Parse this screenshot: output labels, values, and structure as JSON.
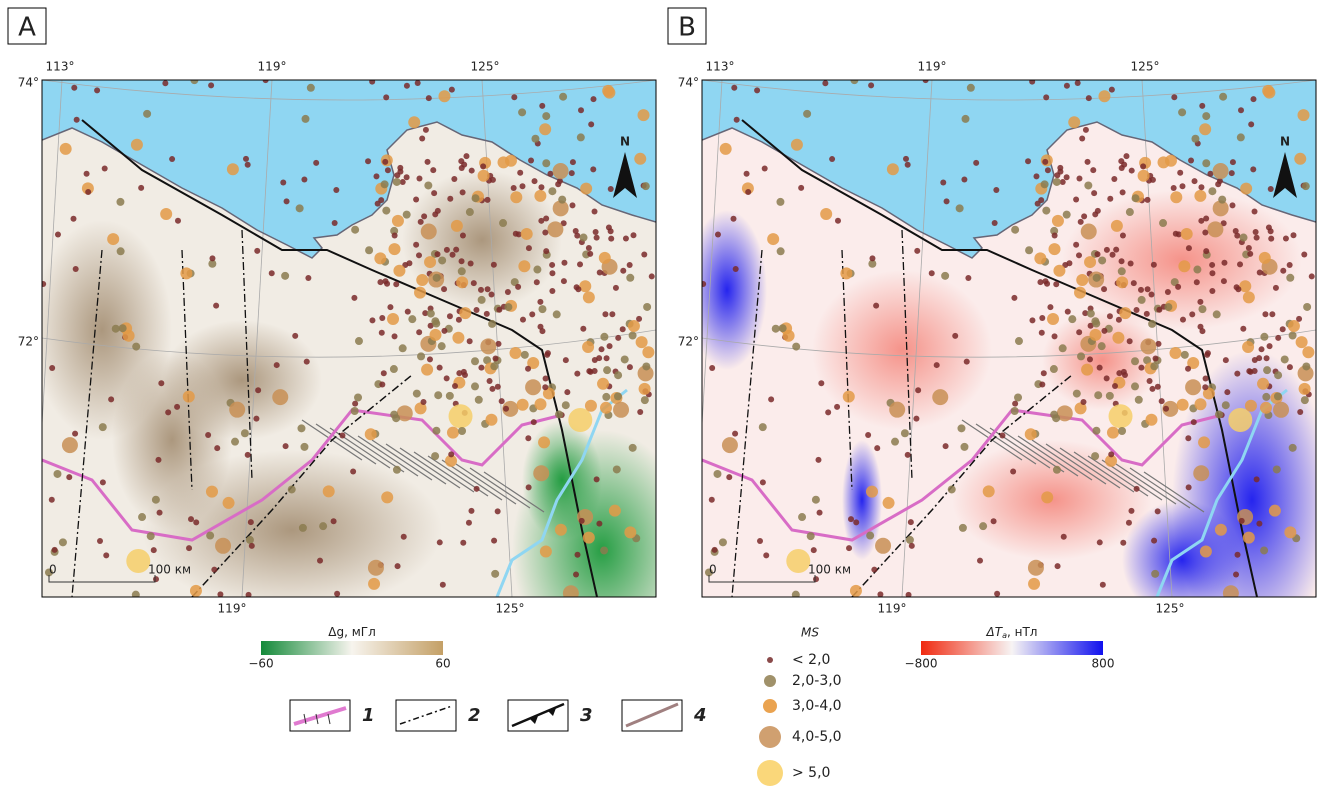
{
  "panels": [
    {
      "label": "A",
      "lon_top": [
        "113°",
        "119°",
        "125°"
      ],
      "lon_bottom": [
        "119°",
        "125°"
      ],
      "lat": [
        "74°",
        "72°"
      ],
      "north": "N",
      "scale": [
        "0",
        "100 км"
      ],
      "colorbar": {
        "title": "Δg, мГл",
        "min": "−60",
        "max": "60"
      }
    },
    {
      "label": "B",
      "lon_top": [
        "113°",
        "119°",
        "125°"
      ],
      "lon_bottom": [
        "119°",
        "125°"
      ],
      "lat": [
        "74°",
        "72°"
      ],
      "north": "N",
      "scale": [
        "0",
        "100 км"
      ],
      "colorbar": {
        "title": "ΔT",
        "title_sub": "a",
        "title_unit": ", нТл",
        "min": "−800",
        "max": "800"
      }
    }
  ],
  "ms_legend": {
    "title": "MS",
    "items": [
      "< 2,0",
      "2,0-3,0",
      "3,0-4,0",
      "4,0-5,0",
      "> 5,0"
    ]
  },
  "line_legend": [
    "1",
    "2",
    "3",
    "4"
  ]
}
